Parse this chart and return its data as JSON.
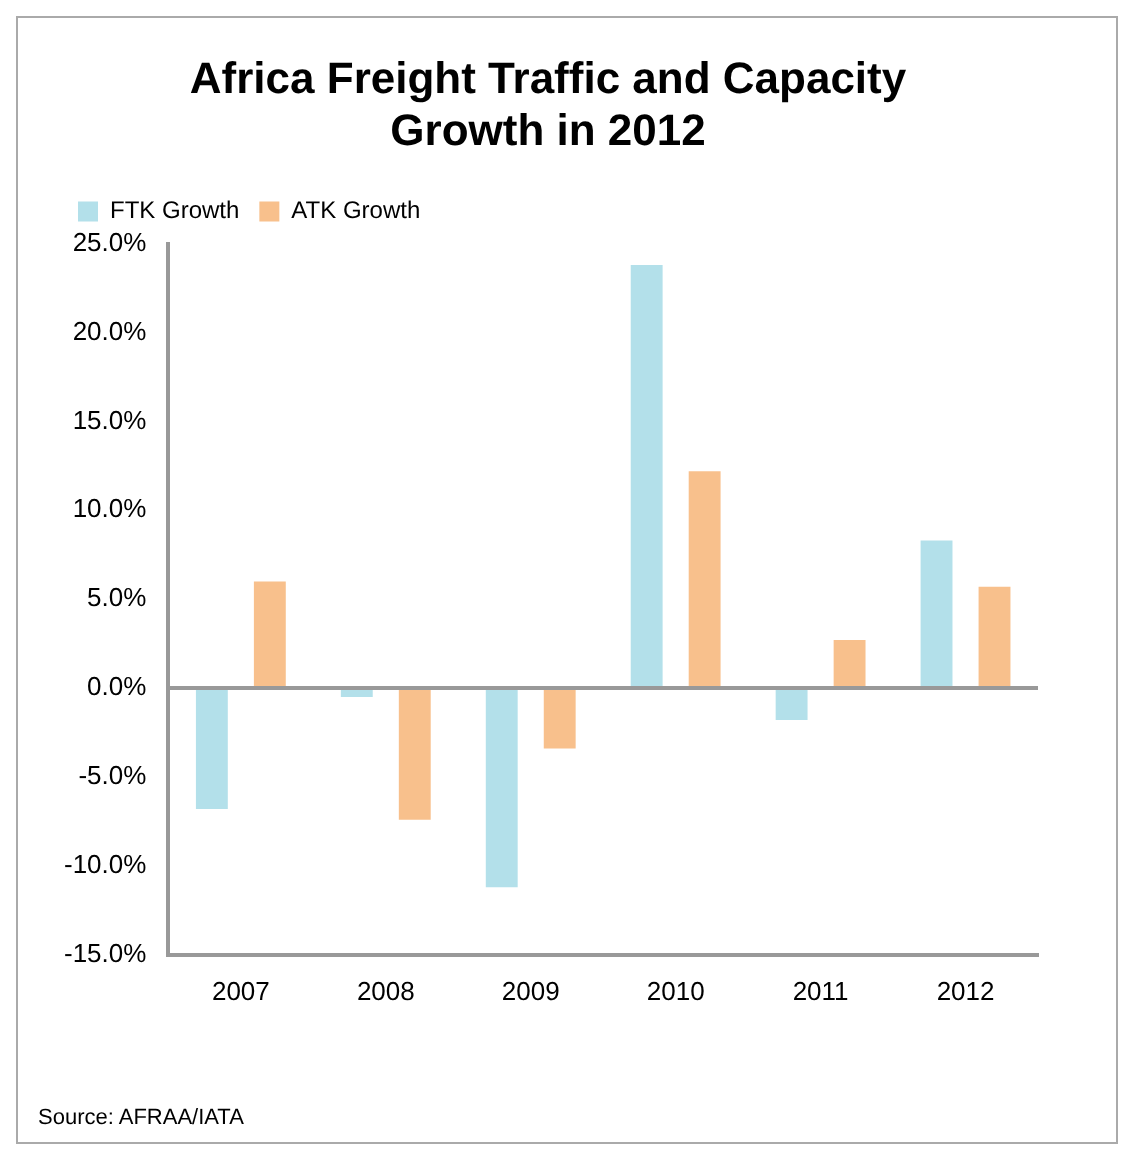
{
  "chart_data": {
    "type": "bar",
    "title": "Africa Freight Traffic and Capacity Growth in 2012",
    "categories": [
      "2007",
      "2008",
      "2009",
      "2010",
      "2011",
      "2012"
    ],
    "series": [
      {
        "name": "FTK Growth",
        "color": "#b3e0ea",
        "values": [
          -6.8,
          -0.5,
          -11.2,
          23.8,
          -1.8,
          8.3
        ]
      },
      {
        "name": "ATK Growth",
        "color": "#f8c08c",
        "values": [
          6.0,
          -7.4,
          -3.4,
          12.2,
          2.7,
          5.7
        ]
      }
    ],
    "ylim": [
      -15,
      25
    ],
    "yticks": [
      {
        "value": -15,
        "label": "-15.0%"
      },
      {
        "value": -10,
        "label": "-10.0%"
      },
      {
        "value": -5,
        "label": "-5.0%"
      },
      {
        "value": 0,
        "label": "0.0%"
      },
      {
        "value": 5,
        "label": "5.0%"
      },
      {
        "value": 10,
        "label": "10.0%"
      },
      {
        "value": 15,
        "label": "15.0%"
      },
      {
        "value": 20,
        "label": "20.0%"
      },
      {
        "value": 25,
        "label": "25.0%"
      }
    ],
    "ref_lines": [
      {
        "axis": "y",
        "value": 0,
        "color": "#999999"
      }
    ],
    "legend": "top left",
    "annotations": [
      "Source: AFRAA/IATA"
    ]
  }
}
